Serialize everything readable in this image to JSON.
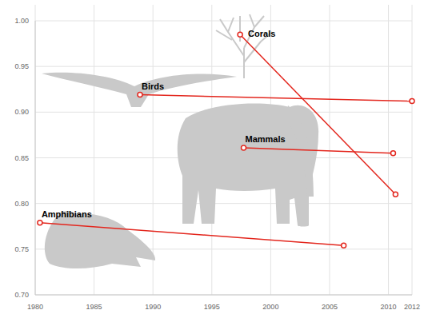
{
  "chart_data": {
    "type": "line",
    "xlim": [
      1980,
      2012
    ],
    "xticks": [
      1980,
      1985,
      1990,
      1995,
      2000,
      2005,
      2010,
      2012
    ],
    "ylim": [
      0.7,
      1.0
    ],
    "yticks": [
      {
        "value": 0.7,
        "label": "0.70"
      },
      0.75,
      {
        "value": 0.8,
        "label": "0.80"
      },
      0.85,
      {
        "value": 0.9,
        "label": "0.90"
      },
      0.95,
      {
        "value": 1.0,
        "label": "1.00"
      }
    ],
    "grid": true,
    "marker": "circle",
    "series": [
      {
        "name": "Corals",
        "color": "#e3261d",
        "x": [
          1997.4,
          2010.6
        ],
        "values": [
          0.985,
          0.81
        ]
      },
      {
        "name": "Birds",
        "color": "#e3261d",
        "x": [
          1988.9,
          2012
        ],
        "values": [
          0.919,
          0.912
        ]
      },
      {
        "name": "Mammals",
        "color": "#e3261d",
        "x": [
          1997.7,
          2010.4
        ],
        "values": [
          0.861,
          0.855
        ]
      },
      {
        "name": "Amphibians",
        "color": "#e3261d",
        "x": [
          1980.4,
          2006.2
        ],
        "values": [
          0.779,
          0.754
        ]
      }
    ]
  }
}
